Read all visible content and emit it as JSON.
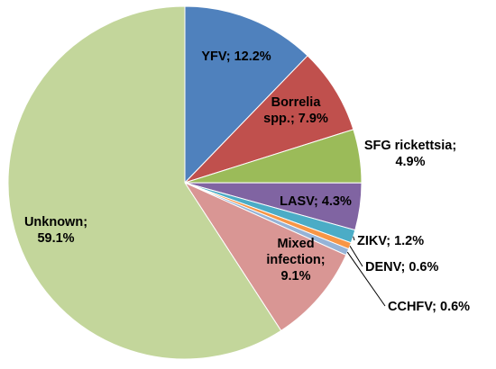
{
  "chart_data": {
    "type": "pie",
    "title": "",
    "slices": [
      {
        "name": "YFV",
        "value": 12.2,
        "label_lines": [
          "YFV; 12.2%"
        ],
        "color": "#4f81bd"
      },
      {
        "name": "Borrelia spp.",
        "value": 7.9,
        "label_lines": [
          "Borrelia",
          "spp.; 7.9%"
        ],
        "color": "#c0504d"
      },
      {
        "name": "SFG rickettsia",
        "value": 4.9,
        "label_lines": [
          "SFG rickettsia;",
          "4.9%"
        ],
        "color": "#9bbb59"
      },
      {
        "name": "LASV",
        "value": 4.3,
        "label_lines": [
          "LASV; 4.3%"
        ],
        "color": "#8064a2"
      },
      {
        "name": "ZIKV",
        "value": 1.2,
        "label_lines": [
          "ZIKV; 1.2%"
        ],
        "color": "#4bacc6"
      },
      {
        "name": "DENV",
        "value": 0.6,
        "label_lines": [
          "DENV; 0.6%"
        ],
        "color": "#f79646"
      },
      {
        "name": "CCHFV",
        "value": 0.6,
        "label_lines": [
          "CCHFV; 0.6%"
        ],
        "color": "#95b3d7"
      },
      {
        "name": "Mixed infection",
        "value": 9.1,
        "label_lines": [
          "Mixed",
          "infection;",
          "9.1%"
        ],
        "color": "#d99694"
      },
      {
        "name": "Unknown",
        "value": 59.1,
        "label_lines": [
          "Unknown;",
          "59.1%"
        ],
        "color": "#c3d69b"
      }
    ]
  }
}
